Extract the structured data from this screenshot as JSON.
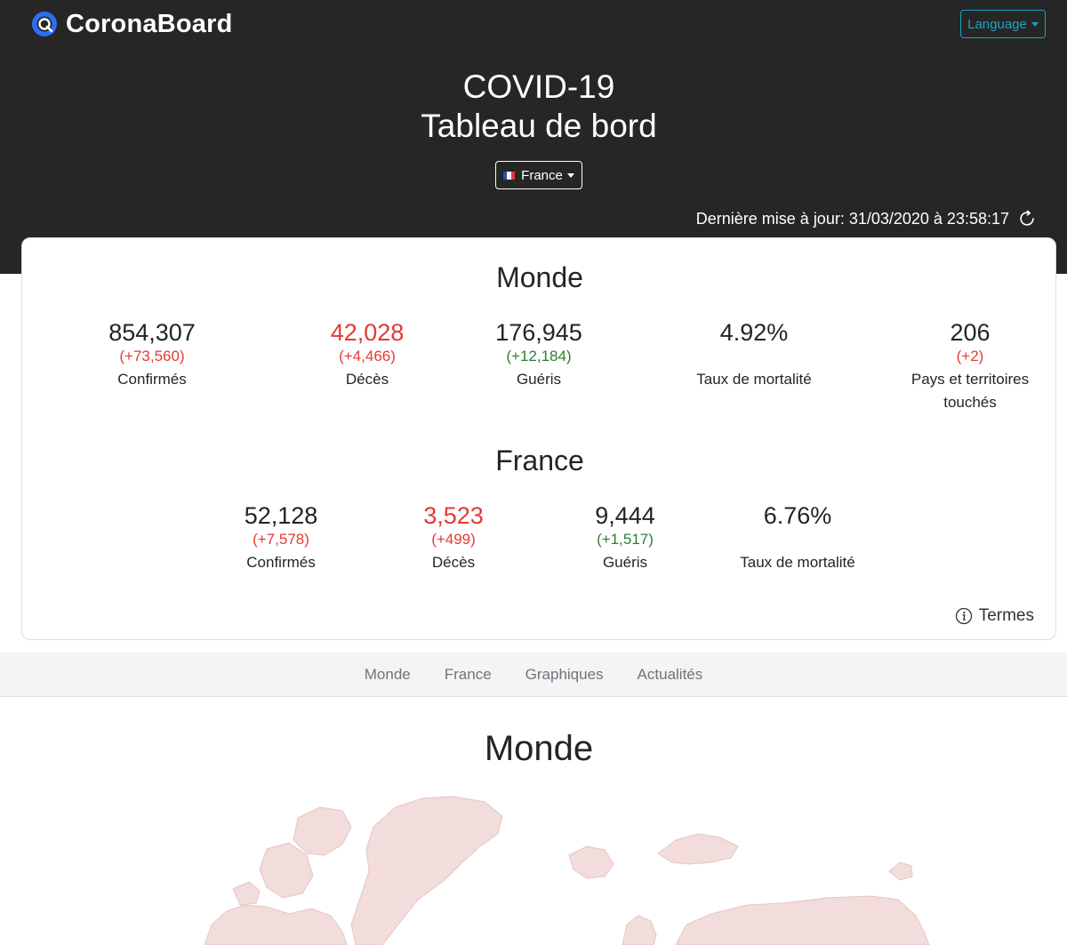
{
  "header": {
    "brand_name": "CoronaBoard",
    "language_label": "Language",
    "title_line1": "COVID-19",
    "title_line2": "Tableau de bord",
    "country_label": "France",
    "last_update": "Dernière mise à jour: 31/03/2020 à 23:58:17"
  },
  "colors": {
    "header_bg": "#262626",
    "accent": "#1aa3c4",
    "negative": "#e53935",
    "positive": "#2e7d32"
  },
  "world": {
    "title": "Monde",
    "stats": [
      {
        "value": "854,307",
        "delta": "(+73,560)",
        "label": "Confirmés"
      },
      {
        "value": "42,028",
        "delta": "(+4,466)",
        "label": "Décès"
      },
      {
        "value": "176,945",
        "delta": "(+12,184)",
        "label": "Guéris"
      },
      {
        "value": "4.92%",
        "delta": "",
        "label": "Taux de mortalité"
      },
      {
        "value": "206",
        "delta": "(+2)",
        "label": "Pays et territoires touchés"
      }
    ]
  },
  "france": {
    "title": "France",
    "stats": [
      {
        "value": "52,128",
        "delta": "(+7,578)",
        "label": "Confirmés"
      },
      {
        "value": "3,523",
        "delta": "(+499)",
        "label": "Décès"
      },
      {
        "value": "9,444",
        "delta": "(+1,517)",
        "label": "Guéris"
      },
      {
        "value": "6.76%",
        "delta": "",
        "label": "Taux de mortalité"
      }
    ]
  },
  "terms_label": "Termes",
  "nav": {
    "items": [
      {
        "label": "Monde"
      },
      {
        "label": "France"
      },
      {
        "label": "Graphiques"
      },
      {
        "label": "Actualités"
      }
    ]
  },
  "map_section": {
    "title": "Monde"
  },
  "icons": {
    "logo": "coronaboard-logo-icon",
    "refresh": "refresh-icon",
    "info": "info-icon",
    "flag": "france-flag-icon",
    "caret": "caret-down-icon"
  }
}
